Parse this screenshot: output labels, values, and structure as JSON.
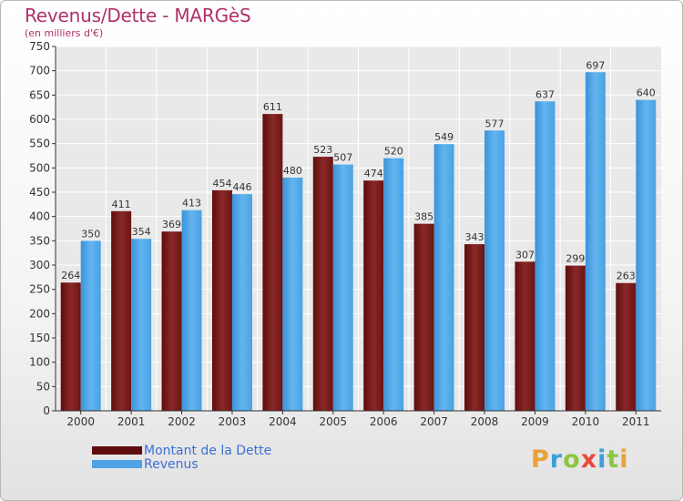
{
  "title": "Revenus/Dette - MARGèS",
  "subtitle": "(en milliers d'€)",
  "logo": {
    "letters": [
      "P",
      "r",
      "o",
      "x",
      "i",
      "t",
      "i"
    ],
    "colors": [
      "#e8a23a",
      "#3aa0d8",
      "#8cc63f",
      "#e84a3a",
      "#3aa0d8",
      "#8cc63f",
      "#e8a23a"
    ]
  },
  "chart_data": {
    "type": "bar",
    "categories": [
      "2000",
      "2001",
      "2002",
      "2003",
      "2004",
      "2005",
      "2006",
      "2007",
      "2008",
      "2009",
      "2010",
      "2011"
    ],
    "series": [
      {
        "name": "Montant de la Dette",
        "color": "#7a1a1a",
        "values": [
          264,
          411,
          369,
          454,
          611,
          523,
          474,
          385,
          343,
          307,
          299,
          263
        ]
      },
      {
        "name": "Revenus",
        "color": "#4da3e6",
        "values": [
          350,
          354,
          413,
          446,
          480,
          507,
          520,
          549,
          577,
          637,
          697,
          640
        ]
      }
    ],
    "ylim": [
      0,
      750
    ],
    "yticks": [
      0,
      50,
      100,
      150,
      200,
      250,
      300,
      350,
      400,
      450,
      500,
      550,
      600,
      650,
      700,
      750
    ],
    "grid": true,
    "legend_position": "bottom-left"
  }
}
